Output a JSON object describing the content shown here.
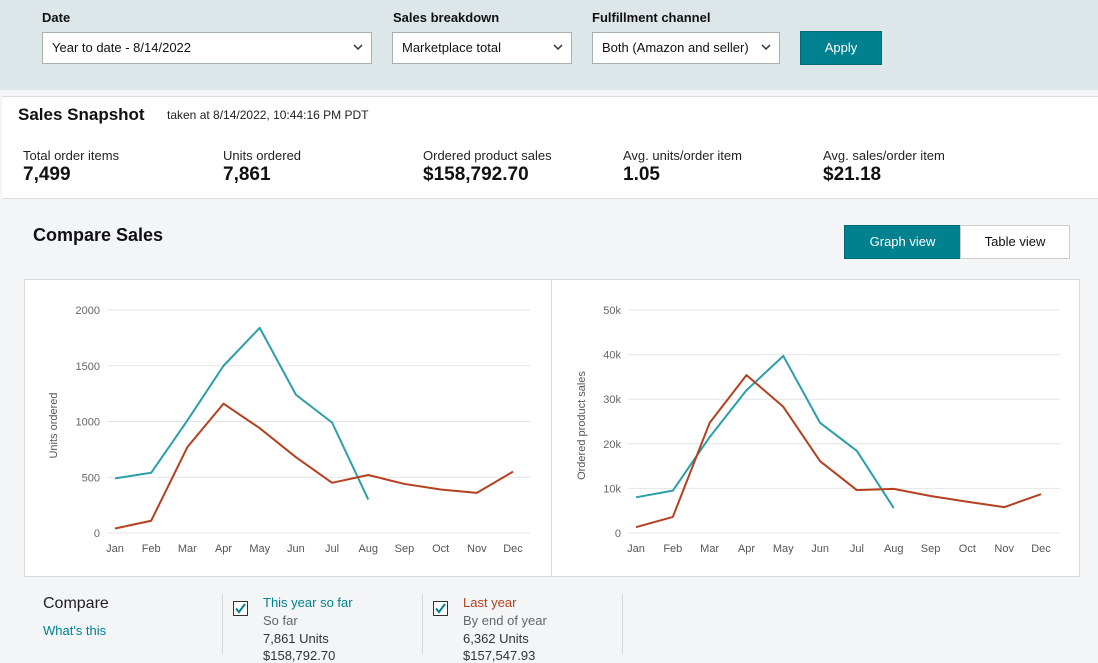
{
  "filters": [
    {
      "label": "Date",
      "value": "Year to date - 8/14/2022"
    },
    {
      "label": "Sales breakdown",
      "value": "Marketplace total"
    },
    {
      "label": "Fulfillment channel",
      "value": "Both (Amazon and seller)"
    }
  ],
  "apply": "Apply",
  "snapshot": {
    "title": "Sales Snapshot",
    "timestamp": "taken at 8/14/2022, 10:44:16 PM PDT",
    "metrics": [
      {
        "label": "Total order items",
        "value": "7,499"
      },
      {
        "label": "Units ordered",
        "value": "7,861"
      },
      {
        "label": "Ordered product sales",
        "value": "$158,792.70"
      },
      {
        "label": "Avg. units/order item",
        "value": "1.05"
      },
      {
        "label": "Avg. sales/order item",
        "value": "$21.18"
      }
    ]
  },
  "compare_sales": {
    "title": "Compare Sales",
    "views": [
      "Graph view",
      "Table view"
    ]
  },
  "chart_data": [
    {
      "type": "line",
      "y_label": "Units ordered",
      "categories": [
        "Jan",
        "Feb",
        "Mar",
        "Apr",
        "May",
        "Jun",
        "Jul",
        "Aug",
        "Sep",
        "Oct",
        "Nov",
        "Dec"
      ],
      "ylim": [
        0,
        2000
      ],
      "yticks": [
        0,
        500,
        1000,
        1500,
        2000
      ],
      "grid": true,
      "series": [
        {
          "color": "#2a9fa8",
          "values": [
            490,
            540,
            1010,
            1500,
            1840,
            1240,
            990,
            300,
            null,
            null,
            null,
            null
          ]
        },
        {
          "color": "#b5401f",
          "values": [
            40,
            110,
            770,
            1160,
            940,
            680,
            450,
            520,
            440,
            390,
            360,
            550
          ]
        }
      ]
    },
    {
      "type": "line",
      "y_label": "Ordered product sales",
      "categories": [
        "Jan",
        "Feb",
        "Mar",
        "Apr",
        "May",
        "Jun",
        "Jul",
        "Aug",
        "Sep",
        "Oct",
        "Nov",
        "Dec"
      ],
      "ylim": [
        0,
        50000
      ],
      "yticks": [
        0,
        {
          "value": 10000,
          "label": "10k"
        },
        {
          "value": 20000,
          "label": "20k"
        },
        {
          "value": 30000,
          "label": "30k"
        },
        {
          "value": 40000,
          "label": "40k"
        },
        {
          "value": 50000,
          "label": "50k"
        }
      ],
      "grid": true,
      "series": [
        {
          "color": "#2a9fa8",
          "values": [
            8000,
            9500,
            21500,
            32000,
            39700,
            24700,
            18400,
            5600,
            null,
            null,
            null,
            null
          ]
        },
        {
          "color": "#b5401f",
          "values": [
            1300,
            3600,
            24700,
            35400,
            28300,
            16100,
            9600,
            9900,
            8300,
            7000,
            5800,
            8700
          ]
        }
      ]
    }
  ],
  "compare": {
    "title": "Compare",
    "link": "What's this",
    "options": [
      {
        "label": "This year so far",
        "sublabel": "So far",
        "units": "7,861 Units",
        "sales": "$158,792.70"
      },
      {
        "label": "Last year",
        "sublabel": "By end of year",
        "units": "6,362 Units",
        "sales": "$157,547.93"
      }
    ]
  }
}
